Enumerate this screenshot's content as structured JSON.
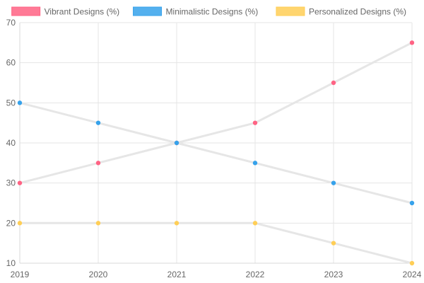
{
  "chart_data": {
    "type": "line",
    "title": "",
    "xlabel": "",
    "ylabel": "",
    "x": [
      "2019",
      "2020",
      "2021",
      "2022",
      "2023",
      "2024"
    ],
    "ylim": [
      10,
      70
    ],
    "yticks": [
      10,
      20,
      30,
      40,
      50,
      60,
      70
    ],
    "grid": true,
    "legend_position": "top",
    "line_color": "#e6e6e6",
    "series": [
      {
        "name": "Vibrant Designs (%)",
        "values": [
          30,
          35,
          40,
          45,
          55,
          65
        ],
        "color": "#ff6384"
      },
      {
        "name": "Minimalistic Designs (%)",
        "values": [
          50,
          45,
          40,
          35,
          30,
          25
        ],
        "color": "#36a2eb"
      },
      {
        "name": "Personalized Designs (%)",
        "values": [
          20,
          20,
          20,
          20,
          15,
          10
        ],
        "color": "#ffce56"
      }
    ]
  }
}
